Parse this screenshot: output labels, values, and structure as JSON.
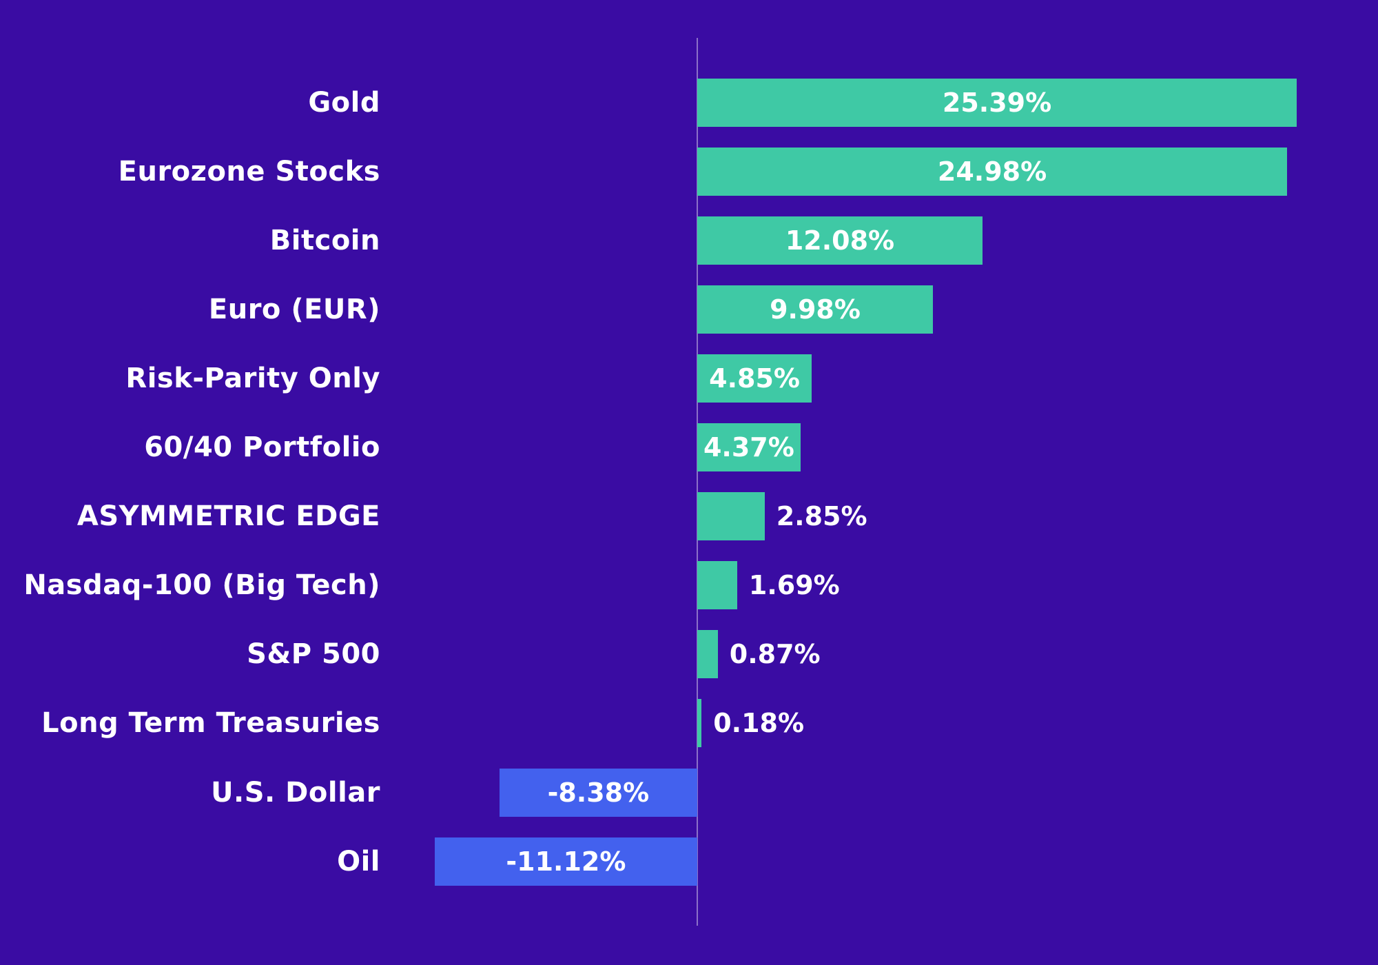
{
  "chart_data": {
    "type": "bar",
    "orientation": "horizontal",
    "title": "",
    "xlabel": "",
    "ylabel": "",
    "grid": false,
    "legend": "none",
    "xlim": [
      -11.12,
      25.39
    ],
    "categories": [
      "Gold",
      "Eurozone Stocks",
      "Bitcoin",
      "Euro (EUR)",
      "Risk-Parity Only",
      "60/40 Portfolio",
      "ASYMMETRIC EDGE",
      "Nasdaq-100 (Big Tech)",
      "S&P 500",
      "Long Term Treasuries",
      "U.S. Dollar",
      "Oil"
    ],
    "values": [
      25.39,
      24.98,
      12.08,
      9.98,
      4.85,
      4.37,
      2.85,
      1.69,
      0.87,
      0.18,
      -8.38,
      -11.12
    ],
    "value_labels": [
      "25.39%",
      "24.98%",
      "12.08%",
      "9.98%",
      "4.85%",
      "4.37%",
      "2.85%",
      "1.69%",
      "0.87%",
      "0.18%",
      "-8.38%",
      "-11.12%"
    ],
    "colors": {
      "background": "#3A0CA3",
      "positive_bar": "#3FC9A5",
      "negative_bar": "#4361EE",
      "text": "#FFFFFF",
      "axis_line": "rgba(255,255,255,0.42)"
    }
  }
}
